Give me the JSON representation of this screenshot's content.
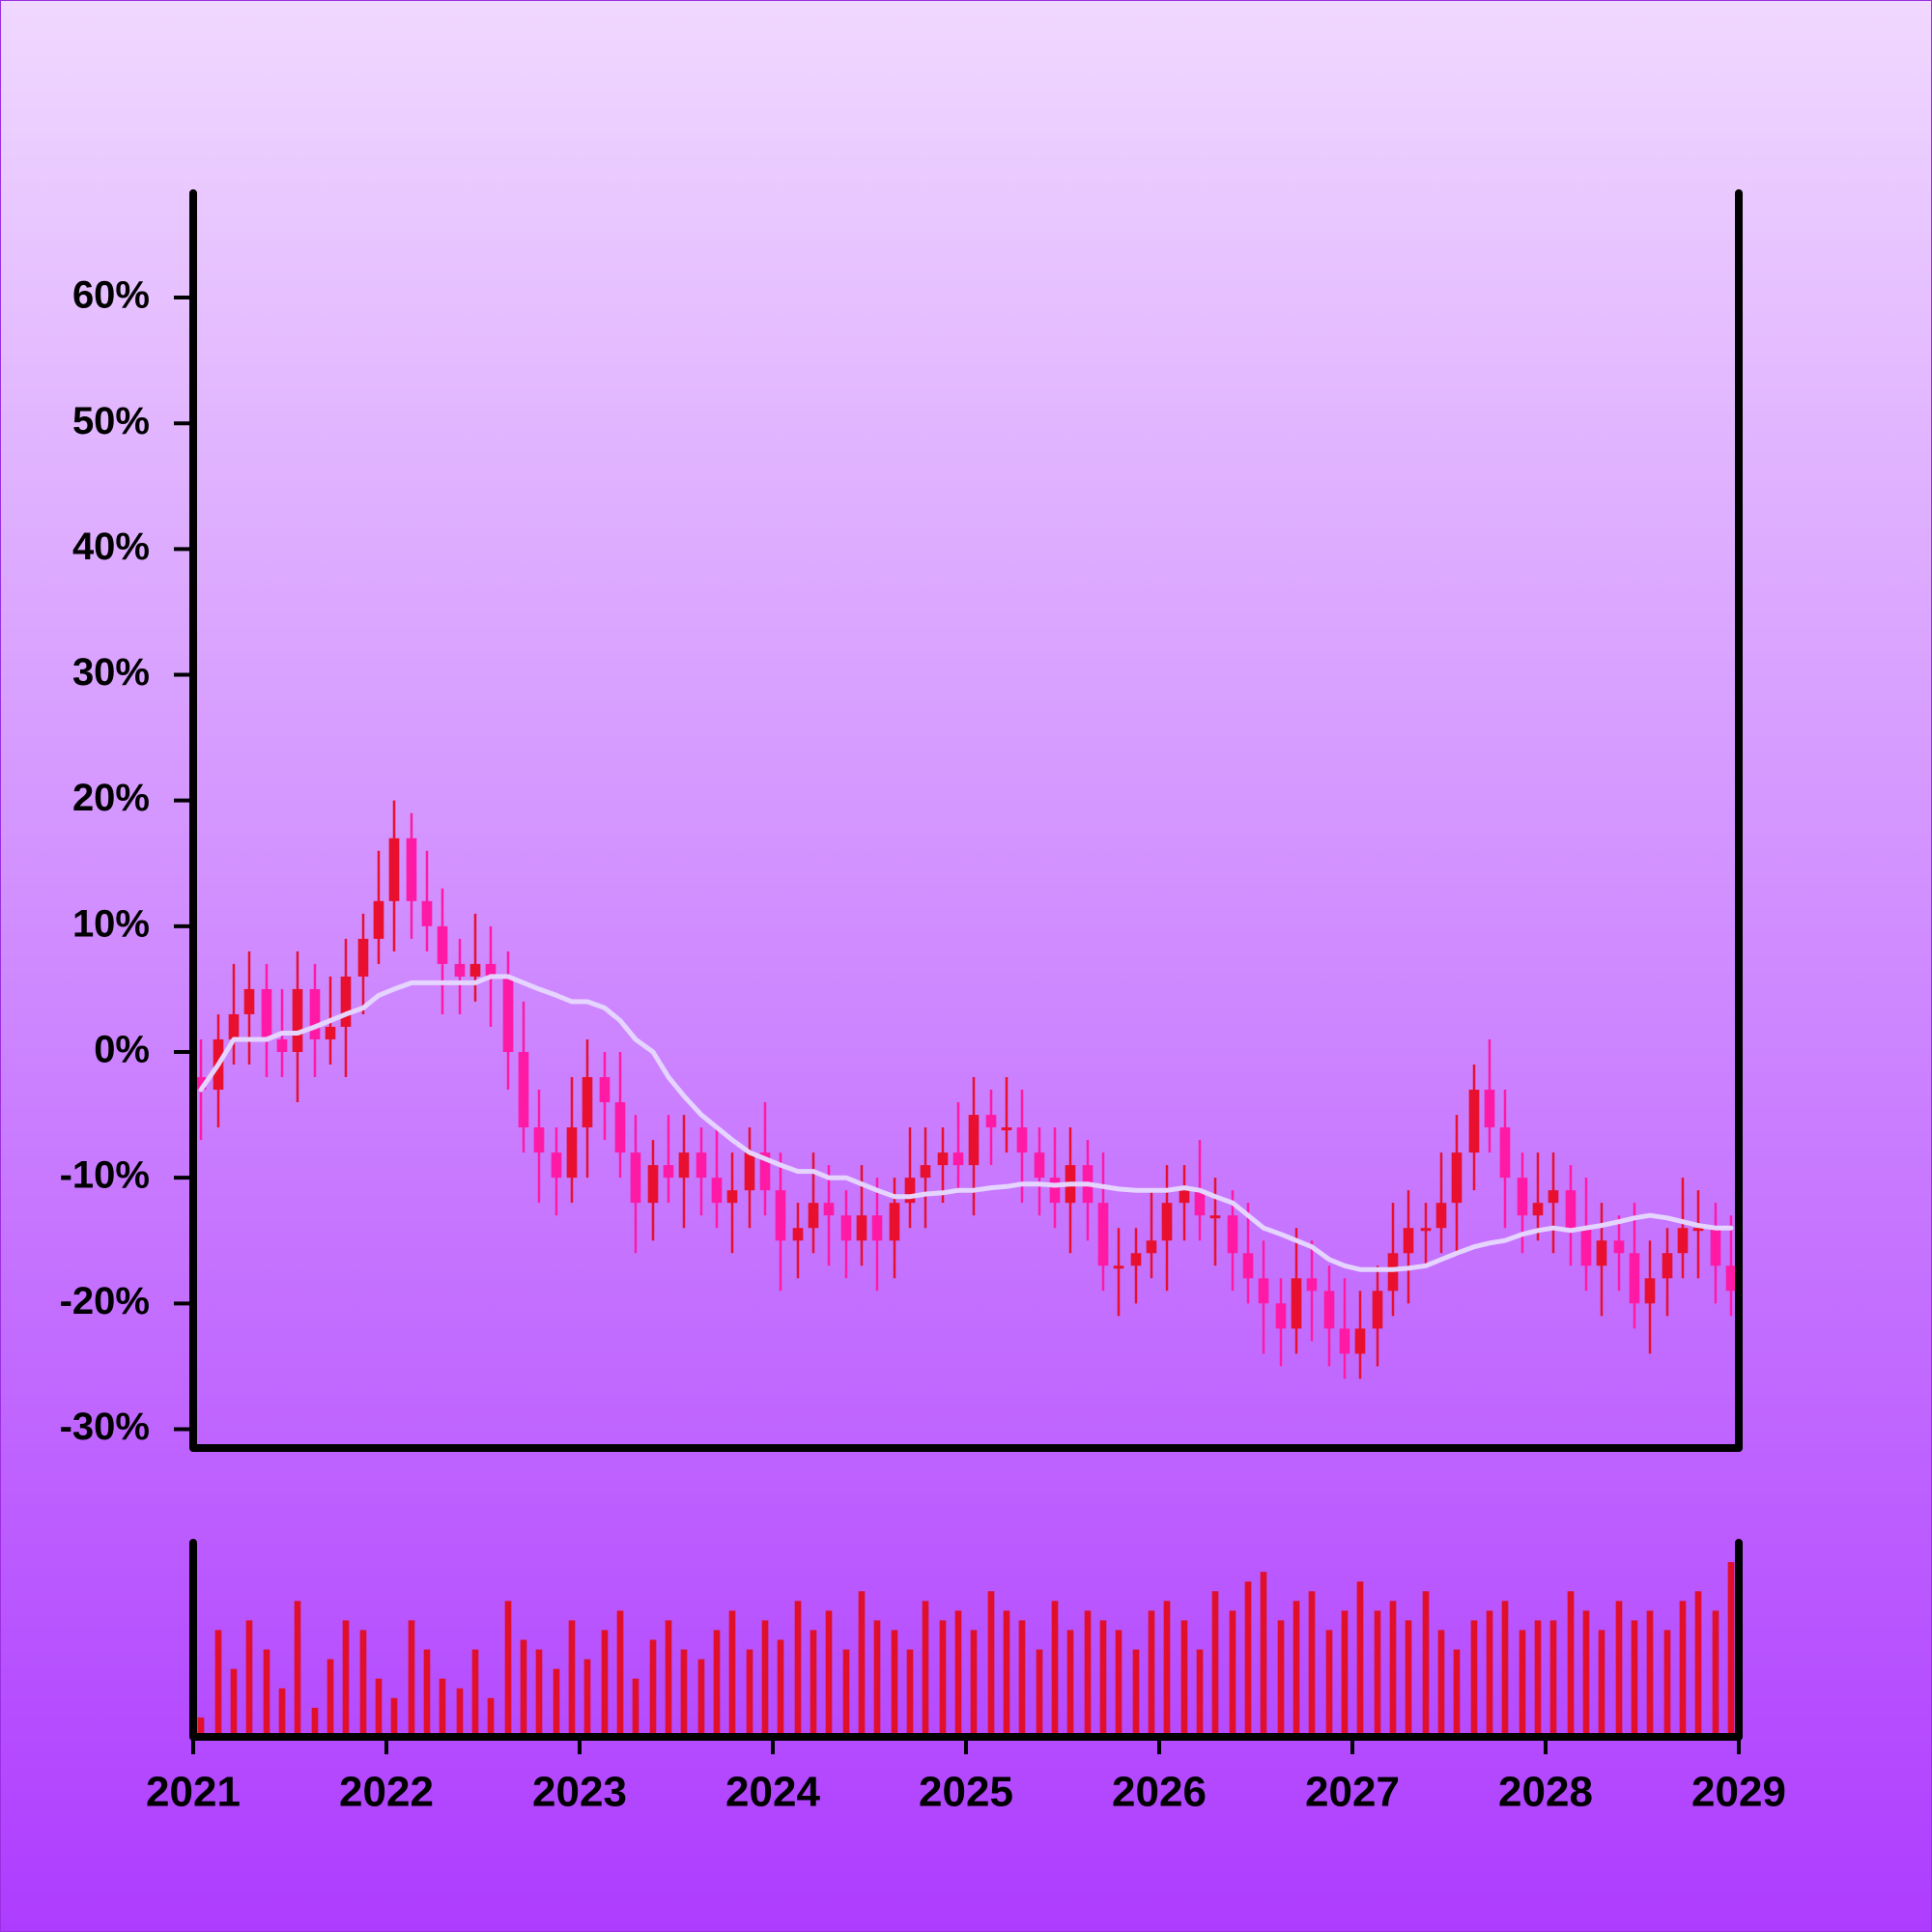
{
  "chart_data": {
    "type": "candlestick",
    "xlim": [
      2021,
      2029
    ],
    "xticks": [
      2021,
      2022,
      2023,
      2024,
      2025,
      2026,
      2027,
      2028,
      2029
    ],
    "ylim": [
      -31.5,
      68.3
    ],
    "yticks": [
      {
        "value": 60,
        "label": "60%"
      },
      {
        "value": 50,
        "label": "50%"
      },
      {
        "value": 40,
        "label": "40%"
      },
      {
        "value": 30,
        "label": "30%"
      },
      {
        "value": 20,
        "label": "20%"
      },
      {
        "value": 10,
        "label": "10%"
      },
      {
        "value": 0,
        "label": "0%"
      },
      {
        "value": -10,
        "label": "-10%"
      },
      {
        "value": -20,
        "label": "-20%"
      },
      {
        "value": -30,
        "label": "-30%"
      }
    ],
    "colors": {
      "up": "#e8102e",
      "down": "#ff1aa6"
    },
    "x": [
      2021.04,
      2021.13,
      2021.21,
      2021.29,
      2021.38,
      2021.46,
      2021.54,
      2021.63,
      2021.71,
      2021.79,
      2021.88,
      2021.96,
      2022.04,
      2022.13,
      2022.21,
      2022.29,
      2022.38,
      2022.46,
      2022.54,
      2022.63,
      2022.71,
      2022.79,
      2022.88,
      2022.96,
      2023.04,
      2023.13,
      2023.21,
      2023.29,
      2023.38,
      2023.46,
      2023.54,
      2023.63,
      2023.71,
      2023.79,
      2023.88,
      2023.96,
      2024.04,
      2024.13,
      2024.21,
      2024.29,
      2024.38,
      2024.46,
      2024.54,
      2024.63,
      2024.71,
      2024.79,
      2024.88,
      2024.96,
      2025.04,
      2025.13,
      2025.21,
      2025.29,
      2025.38,
      2025.46,
      2025.54,
      2025.63,
      2025.71,
      2025.79,
      2025.88,
      2025.96,
      2026.04,
      2026.13,
      2026.21,
      2026.29,
      2026.38,
      2026.46,
      2026.54,
      2026.63,
      2026.71,
      2026.79,
      2026.88,
      2026.96,
      2027.04,
      2027.13,
      2027.21,
      2027.29,
      2027.38,
      2027.46,
      2027.54,
      2027.63,
      2027.71,
      2027.79,
      2027.88,
      2027.96,
      2028.04,
      2028.13,
      2028.21,
      2028.29,
      2028.38,
      2028.46,
      2028.54,
      2028.63,
      2028.71,
      2028.79,
      2028.88,
      2028.96
    ],
    "open": [
      -2,
      -3,
      1,
      3,
      5,
      1,
      0,
      5,
      1,
      2,
      6,
      9,
      12,
      17,
      12,
      10,
      7,
      6,
      7,
      6,
      0,
      -6,
      -8,
      -10,
      -6,
      -2,
      -4,
      -8,
      -12,
      -9,
      -10,
      -8,
      -10,
      -12,
      -11,
      -8,
      -11,
      -15,
      -14,
      -12,
      -13,
      -15,
      -13,
      -15,
      -12,
      -10,
      -9,
      -8,
      -9,
      -5,
      -6,
      -6,
      -8,
      -10,
      -12,
      -9,
      -12,
      -17,
      -17,
      -16,
      -15,
      -12,
      -11,
      -13,
      -13,
      -16,
      -18,
      -20,
      -22,
      -18,
      -19,
      -22,
      -24,
      -22,
      -19,
      -16,
      -14,
      -14,
      -12,
      -8,
      -3,
      -6,
      -10,
      -13,
      -12,
      -11,
      -14,
      -17,
      -15,
      -16,
      -20,
      -18,
      -16,
      -14,
      -14,
      -17
    ],
    "high": [
      1,
      3,
      7,
      8,
      7,
      5,
      8,
      7,
      6,
      9,
      11,
      16,
      20,
      19,
      16,
      13,
      9,
      11,
      10,
      8,
      4,
      -3,
      -6,
      -2,
      1,
      0,
      0,
      -5,
      -7,
      -5,
      -5,
      -6,
      -6,
      -8,
      -6,
      -4,
      -8,
      -12,
      -8,
      -9,
      -11,
      -9,
      -10,
      -10,
      -6,
      -6,
      -6,
      -4,
      -2,
      -3,
      -2,
      -3,
      -6,
      -6,
      -6,
      -7,
      -8,
      -14,
      -14,
      -11,
      -9,
      -9,
      -7,
      -10,
      -11,
      -12,
      -15,
      -18,
      -14,
      -15,
      -17,
      -18,
      -19,
      -17,
      -12,
      -11,
      -12,
      -8,
      -5,
      -1,
      1,
      -3,
      -8,
      -8,
      -8,
      -9,
      -10,
      -12,
      -13,
      -12,
      -15,
      -14,
      -10,
      -11,
      -12,
      -13
    ],
    "low": [
      -7,
      -6,
      -1,
      -1,
      -2,
      -2,
      -4,
      -2,
      -1,
      -2,
      3,
      7,
      8,
      9,
      8,
      3,
      3,
      4,
      2,
      -3,
      -8,
      -12,
      -13,
      -12,
      -10,
      -7,
      -10,
      -16,
      -15,
      -12,
      -14,
      -13,
      -14,
      -16,
      -14,
      -13,
      -19,
      -18,
      -16,
      -17,
      -18,
      -17,
      -19,
      -18,
      -14,
      -14,
      -12,
      -11,
      -13,
      -9,
      -8,
      -12,
      -13,
      -14,
      -16,
      -15,
      -19,
      -21,
      -20,
      -18,
      -19,
      -15,
      -15,
      -17,
      -19,
      -20,
      -24,
      -25,
      -24,
      -23,
      -25,
      -26,
      -26,
      -25,
      -21,
      -20,
      -17,
      -16,
      -16,
      -11,
      -8,
      -14,
      -16,
      -15,
      -16,
      -17,
      -19,
      -21,
      -19,
      -22,
      -24,
      -21,
      -18,
      -18,
      -20,
      -21
    ],
    "close": [
      -3,
      1,
      3,
      5,
      1,
      0,
      5,
      1,
      2,
      6,
      9,
      12,
      17,
      12,
      10,
      7,
      6,
      7,
      6,
      0,
      -6,
      -8,
      -10,
      -6,
      -2,
      -4,
      -8,
      -12,
      -9,
      -10,
      -8,
      -10,
      -12,
      -11,
      -8,
      -11,
      -15,
      -14,
      -12,
      -13,
      -15,
      -13,
      -15,
      -12,
      -10,
      -9,
      -8,
      -9,
      -5,
      -6,
      -6,
      -8,
      -10,
      -12,
      -9,
      -12,
      -17,
      -17,
      -16,
      -15,
      -12,
      -11,
      -13,
      -13,
      -16,
      -18,
      -20,
      -22,
      -18,
      -19,
      -22,
      -24,
      -22,
      -19,
      -16,
      -14,
      -14,
      -12,
      -8,
      -3,
      -6,
      -10,
      -13,
      -12,
      -11,
      -14,
      -17,
      -15,
      -16,
      -20,
      -18,
      -16,
      -14,
      -14,
      -17,
      -19
    ],
    "series": [
      {
        "color": "#e4d4ff",
        "values": [
          -3,
          -1,
          1,
          1,
          1,
          1.5,
          1.5,
          2,
          2.5,
          3,
          3.5,
          4.5,
          5,
          5.5,
          5.5,
          5.5,
          5.5,
          5.5,
          6,
          6,
          5.5,
          5,
          4.5,
          4,
          4,
          3.5,
          2.5,
          1,
          0,
          -2,
          -3.5,
          -5,
          -6,
          -7,
          -8,
          -8.5,
          -9,
          -9.5,
          -9.5,
          -10,
          -10,
          -10.5,
          -11,
          -11.5,
          -11.5,
          -11.3,
          -11.2,
          -11,
          -11,
          -10.8,
          -10.7,
          -10.5,
          -10.5,
          -10.6,
          -10.5,
          -10.5,
          -10.7,
          -10.9,
          -11,
          -11,
          -11,
          -10.8,
          -11,
          -11.5,
          -12,
          -13,
          -14,
          -14.5,
          -15,
          -15.5,
          -16.5,
          -17,
          -17.3,
          -17.3,
          -17.3,
          -17.2,
          -17,
          -16.5,
          -16,
          -15.5,
          -15.2,
          -15,
          -14.5,
          -14.2,
          -14,
          -14.2,
          -14,
          -13.8,
          -13.5,
          -13.2,
          -13,
          -13.2,
          -13.5,
          -13.8,
          -14,
          -14
        ]
      }
    ],
    "volume": {
      "color": "#e0102a",
      "ylim": [
        0,
        100
      ],
      "values": [
        10,
        55,
        35,
        60,
        45,
        25,
        70,
        15,
        40,
        60,
        55,
        30,
        20,
        60,
        45,
        30,
        25,
        45,
        20,
        70,
        50,
        45,
        35,
        60,
        40,
        55,
        65,
        30,
        50,
        60,
        45,
        40,
        55,
        65,
        45,
        60,
        50,
        70,
        55,
        65,
        45,
        75,
        60,
        55,
        45,
        70,
        60,
        65,
        55,
        75,
        65,
        60,
        45,
        70,
        55,
        65,
        60,
        55,
        45,
        65,
        70,
        60,
        45,
        75,
        65,
        80,
        85,
        60,
        70,
        75,
        55,
        65,
        80,
        65,
        70,
        60,
        75,
        55,
        45,
        60,
        65,
        70,
        55,
        60,
        60,
        75,
        65,
        55,
        70,
        60,
        65,
        55,
        70,
        75,
        65,
        90
      ]
    }
  }
}
